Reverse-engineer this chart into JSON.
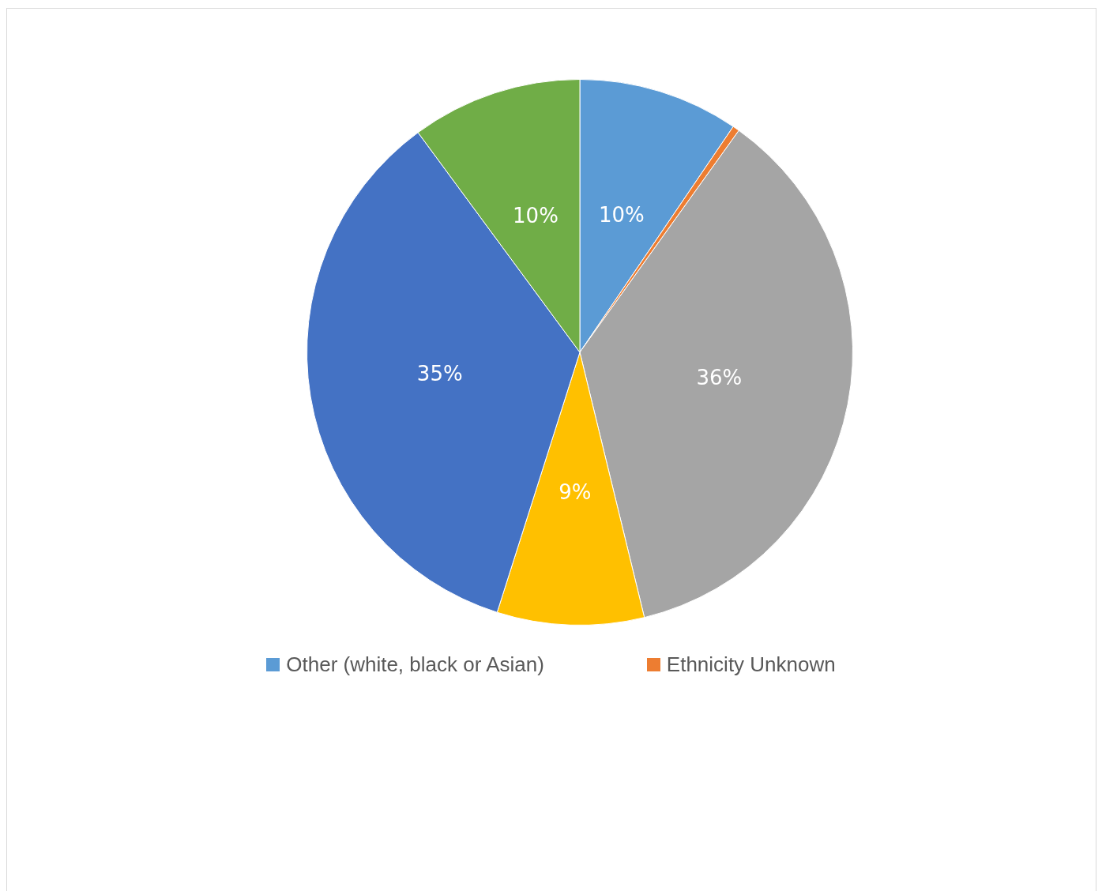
{
  "chart_data": {
    "type": "pie",
    "categories": [
      "Other (white, black or Asian)",
      "Ethnicity Unknown",
      null,
      null,
      null,
      null
    ],
    "values": [
      9.5,
      0.4,
      36.3,
      8.7,
      35,
      10.1
    ],
    "value_labels": [
      "10%",
      null,
      "36%",
      "9%",
      "35%",
      "10%"
    ],
    "colors": [
      "#5b9bd5",
      "#ed7d31",
      "#a5a5a5",
      "#ffc000",
      "#4472c4",
      "#70ad47"
    ],
    "legend": "bottom"
  }
}
